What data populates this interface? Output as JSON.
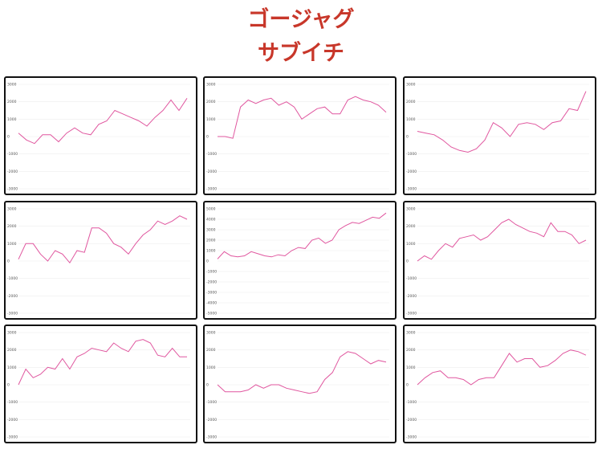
{
  "header": {
    "title": "ゴージャグ",
    "subtitle": "サブイチ"
  },
  "chart_data": [
    {
      "type": "line",
      "color": "#e0579f",
      "grid": true,
      "ylim": [
        -3000,
        3000
      ],
      "yticks": [
        3000,
        2000,
        1000,
        0,
        -1000,
        -2000,
        -3000
      ],
      "values": [
        200,
        -200,
        -400,
        100,
        100,
        -300,
        200,
        500,
        200,
        100,
        700,
        900,
        1500,
        1300,
        1100,
        900,
        600,
        1100,
        1500,
        2100,
        1500,
        2200
      ]
    },
    {
      "type": "line",
      "color": "#e0579f",
      "grid": true,
      "ylim": [
        -3000,
        3000
      ],
      "yticks": [
        3000,
        2000,
        1000,
        0,
        -1000,
        -2000,
        -3000
      ],
      "values": [
        0,
        0,
        -100,
        1700,
        2100,
        1900,
        2100,
        2200,
        1800,
        2000,
        1700,
        1000,
        1300,
        1600,
        1700,
        1300,
        1300,
        2100,
        2300,
        2100,
        2000,
        1800,
        1400
      ]
    },
    {
      "type": "line",
      "color": "#e0579f",
      "grid": true,
      "ylim": [
        -3000,
        3000
      ],
      "yticks": [
        3000,
        2000,
        1000,
        0,
        -1000,
        -2000,
        -3000
      ],
      "values": [
        300,
        200,
        100,
        -200,
        -600,
        -800,
        -900,
        -700,
        -200,
        800,
        500,
        0,
        700,
        800,
        700,
        400,
        800,
        900,
        1600,
        1500,
        2600
      ]
    },
    {
      "type": "line",
      "color": "#e0579f",
      "grid": true,
      "ylim": [
        -3000,
        3000
      ],
      "yticks": [
        3000,
        2000,
        1000,
        0,
        -1000,
        -2000,
        -3000
      ],
      "values": [
        100,
        1000,
        1000,
        400,
        0,
        600,
        400,
        -100,
        600,
        500,
        1900,
        1900,
        1600,
        1000,
        800,
        400,
        1000,
        1500,
        1800,
        2300,
        2100,
        2300,
        2600,
        2400
      ]
    },
    {
      "type": "line",
      "color": "#e0579f",
      "grid": true,
      "ylim": [
        -5000,
        5000
      ],
      "yticks": [
        5000,
        4000,
        3000,
        2000,
        1000,
        0,
        -1000,
        -2000,
        -3000,
        -4000,
        -5000
      ],
      "values": [
        200,
        900,
        500,
        400,
        500,
        900,
        700,
        500,
        400,
        600,
        500,
        1000,
        1300,
        1200,
        2000,
        2200,
        1700,
        2000,
        3000,
        3400,
        3700,
        3600,
        3900,
        4200,
        4100,
        4600
      ]
    },
    {
      "type": "line",
      "color": "#e0579f",
      "grid": true,
      "ylim": [
        -3000,
        3000
      ],
      "yticks": [
        3000,
        2000,
        1000,
        0,
        -1000,
        -2000,
        -3000
      ],
      "values": [
        0,
        300,
        100,
        600,
        1000,
        800,
        1300,
        1400,
        1500,
        1200,
        1400,
        1800,
        2200,
        2400,
        2100,
        1900,
        1700,
        1600,
        1400,
        2200,
        1700,
        1700,
        1500,
        1000,
        1200
      ]
    },
    {
      "type": "line",
      "color": "#e0579f",
      "grid": true,
      "ylim": [
        -3000,
        3000
      ],
      "yticks": [
        3000,
        2000,
        1000,
        0,
        -1000,
        -2000,
        -3000
      ],
      "values": [
        0,
        900,
        400,
        600,
        1000,
        900,
        1500,
        900,
        1600,
        1800,
        2100,
        2000,
        1900,
        2400,
        2100,
        1900,
        2500,
        2600,
        2400,
        1700,
        1600,
        2100,
        1600,
        1600
      ]
    },
    {
      "type": "line",
      "color": "#e0579f",
      "grid": true,
      "ylim": [
        -3000,
        3000
      ],
      "yticks": [
        3000,
        2000,
        1000,
        0,
        -1000,
        -2000,
        -3000
      ],
      "values": [
        0,
        -400,
        -400,
        -400,
        -300,
        0,
        -200,
        0,
        0,
        -200,
        -300,
        -400,
        -500,
        -400,
        300,
        700,
        1600,
        1900,
        1800,
        1500,
        1200,
        1400,
        1300
      ]
    },
    {
      "type": "line",
      "color": "#e0579f",
      "grid": true,
      "ylim": [
        -3000,
        3000
      ],
      "yticks": [
        3000,
        2000,
        1000,
        0,
        -1000,
        -2000,
        -3000
      ],
      "values": [
        0,
        400,
        700,
        800,
        400,
        400,
        300,
        0,
        300,
        400,
        400,
        1100,
        1800,
        1300,
        1500,
        1500,
        1000,
        1100,
        1400,
        1800,
        2000,
        1900,
        1700
      ]
    }
  ]
}
